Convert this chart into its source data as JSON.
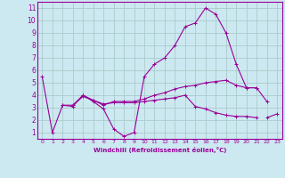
{
  "xlabel": "Windchill (Refroidissement éolien,°C)",
  "background_color": "#cce8f0",
  "line_color": "#990099",
  "grid_color": "#aacccc",
  "xlim": [
    -0.5,
    23.5
  ],
  "ylim": [
    0.5,
    11.5
  ],
  "xticks": [
    0,
    1,
    2,
    3,
    4,
    5,
    6,
    7,
    8,
    9,
    10,
    11,
    12,
    13,
    14,
    15,
    16,
    17,
    18,
    19,
    20,
    21,
    22,
    23
  ],
  "yticks": [
    1,
    2,
    3,
    4,
    5,
    6,
    7,
    8,
    9,
    10,
    11
  ],
  "series": [
    {
      "x": [
        0,
        1,
        2,
        3,
        4,
        5,
        6,
        7,
        8,
        9,
        10,
        11,
        12,
        13,
        14,
        15,
        16,
        17,
        18,
        19,
        20,
        21
      ],
      "y": [
        5.5,
        1.0,
        3.2,
        3.1,
        4.0,
        3.5,
        2.9,
        1.3,
        0.7,
        1.0,
        5.5,
        6.5,
        7.0,
        8.0,
        9.5,
        9.8,
        11.0,
        10.5,
        9.0,
        6.5,
        4.6,
        4.6
      ]
    },
    {
      "x": [
        2,
        3,
        4,
        5,
        6,
        7,
        8,
        9,
        10,
        11,
        12,
        13,
        14,
        15,
        16,
        17,
        18,
        19,
        20,
        21
      ],
      "y": [
        3.2,
        3.2,
        3.9,
        3.6,
        3.3,
        3.4,
        3.4,
        3.4,
        3.5,
        3.6,
        3.7,
        3.8,
        4.0,
        3.1,
        2.9,
        2.6,
        2.4,
        2.3,
        2.3,
        2.2
      ]
    },
    {
      "x": [
        3,
        4,
        5,
        6,
        7,
        8,
        9,
        10,
        11,
        12,
        13,
        14,
        15,
        16,
        17,
        18,
        19,
        20,
        21,
        22
      ],
      "y": [
        3.2,
        4.0,
        3.6,
        3.2,
        3.5,
        3.5,
        3.5,
        3.7,
        4.0,
        4.2,
        4.5,
        4.7,
        4.8,
        5.0,
        5.1,
        5.2,
        4.8,
        4.6,
        4.6,
        3.5
      ]
    },
    {
      "x": [
        22,
        23
      ],
      "y": [
        2.2,
        2.5
      ]
    }
  ]
}
